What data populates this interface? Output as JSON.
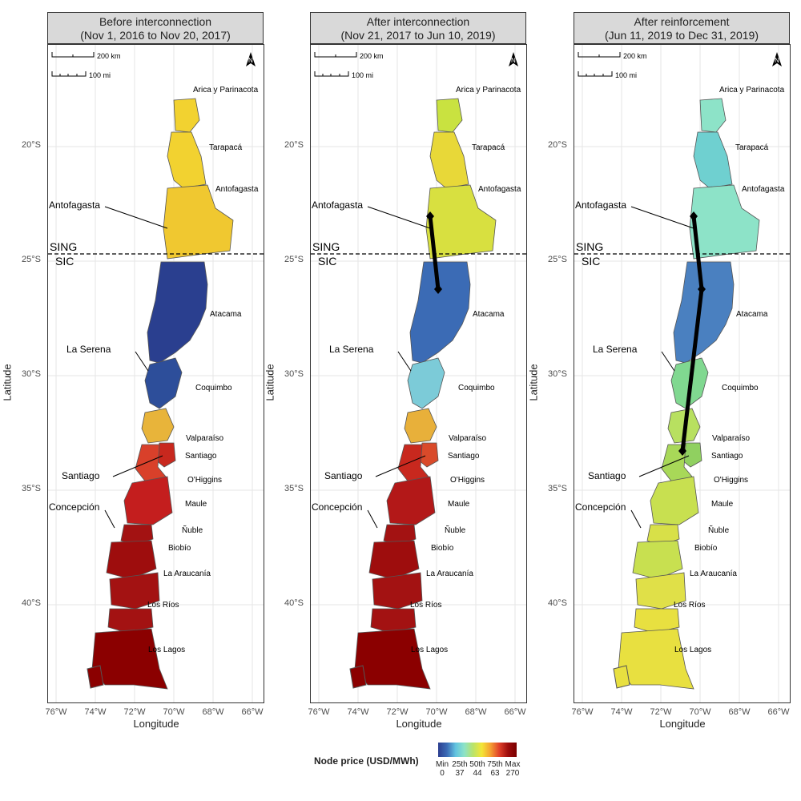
{
  "panels": [
    {
      "title_line1": "Before interconnection",
      "title_line2": "(Nov 1, 2016 to Nov 20, 2017)"
    },
    {
      "title_line1": "After interconnection",
      "title_line2": "(Nov 21, 2017 to Jun 10, 2019)"
    },
    {
      "title_line1": "After reinforcement",
      "title_line2": "(Jun 11, 2019 to Dec 31, 2019)"
    }
  ],
  "scalebar": {
    "km": "200 km",
    "mi": "100 mi"
  },
  "north_arrow": "N",
  "regions": [
    "Arica y Parinacota",
    "Tarapacá",
    "Antofagasta",
    "Atacama",
    "Coquimbo",
    "Valparaíso",
    "Santiago",
    "O'Higgins",
    "Maule",
    "Ñuble",
    "Biobío",
    "La Araucanía",
    "Los Ríos",
    "Los Lagos"
  ],
  "callouts": [
    "Antofagasta",
    "La Serena",
    "Santiago",
    "Concepción"
  ],
  "system_labels": {
    "north": "SING",
    "south": "SIC"
  },
  "y_ticks": [
    "20°S",
    "25°S",
    "30°S",
    "35°S",
    "40°S"
  ],
  "x_ticks": [
    "76°W",
    "74°W",
    "72°W",
    "70°W",
    "68°W",
    "66°W"
  ],
  "axis_labels": {
    "x": "Longitude",
    "y": "Latitude"
  },
  "legend": {
    "title": "Node price (USD/MWh)",
    "ticks": [
      {
        "label": "Min",
        "value": "0"
      },
      {
        "label": "25th",
        "value": "37"
      },
      {
        "label": "50th",
        "value": "44"
      },
      {
        "label": "75th",
        "value": "63"
      },
      {
        "label": "Max",
        "value": "270"
      }
    ]
  },
  "colors": {
    "panel1": [
      "#f2d230",
      "#f2d230",
      "#f0c830",
      "#2a3f8f",
      "#2d4e9a",
      "#e8b43a",
      "#c8281e",
      "#d9402a",
      "#c41e1e",
      "#a31212",
      "#9e0d0d",
      "#a31212",
      "#a31212",
      "#8b0000"
    ],
    "panel2": [
      "#c9e240",
      "#e8d838",
      "#d8e040",
      "#3b6bb5",
      "#7ccbd8",
      "#e8b03a",
      "#d94a2a",
      "#c8281e",
      "#b31818",
      "#a31212",
      "#9e0d0d",
      "#a31212",
      "#a31212",
      "#8b0000"
    ],
    "panel3": [
      "#8de3c8",
      "#6fd0d0",
      "#8de3c8",
      "#4a80c0",
      "#80d890",
      "#b8e060",
      "#90d060",
      "#a8d858",
      "#c8e050",
      "#d8e048",
      "#c8e050",
      "#e0e048",
      "#e8e040",
      "#e8e040"
    ]
  }
}
